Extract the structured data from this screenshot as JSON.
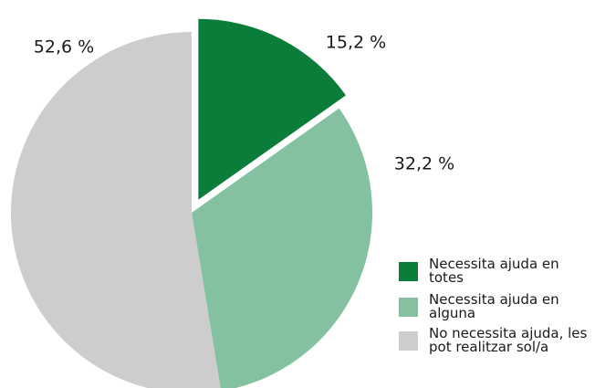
{
  "chart_data": {
    "type": "pie",
    "slices": [
      {
        "label": "Necessita ajuda en totes",
        "value": 15.2,
        "value_label": "15,2 %",
        "color": "#0a7d3a",
        "exploded": true
      },
      {
        "label": "Necessita ajuda en alguna",
        "value": 32.2,
        "value_label": "32,2 %",
        "color": "#84c1a0",
        "exploded": false
      },
      {
        "label": "No necessita ajuda, les pot realitzar sol/a",
        "value": 52.6,
        "value_label": "52,6 %",
        "color": "#cdcdcd",
        "exploded": false
      }
    ],
    "legend_position": "bottom-right",
    "title": ""
  }
}
